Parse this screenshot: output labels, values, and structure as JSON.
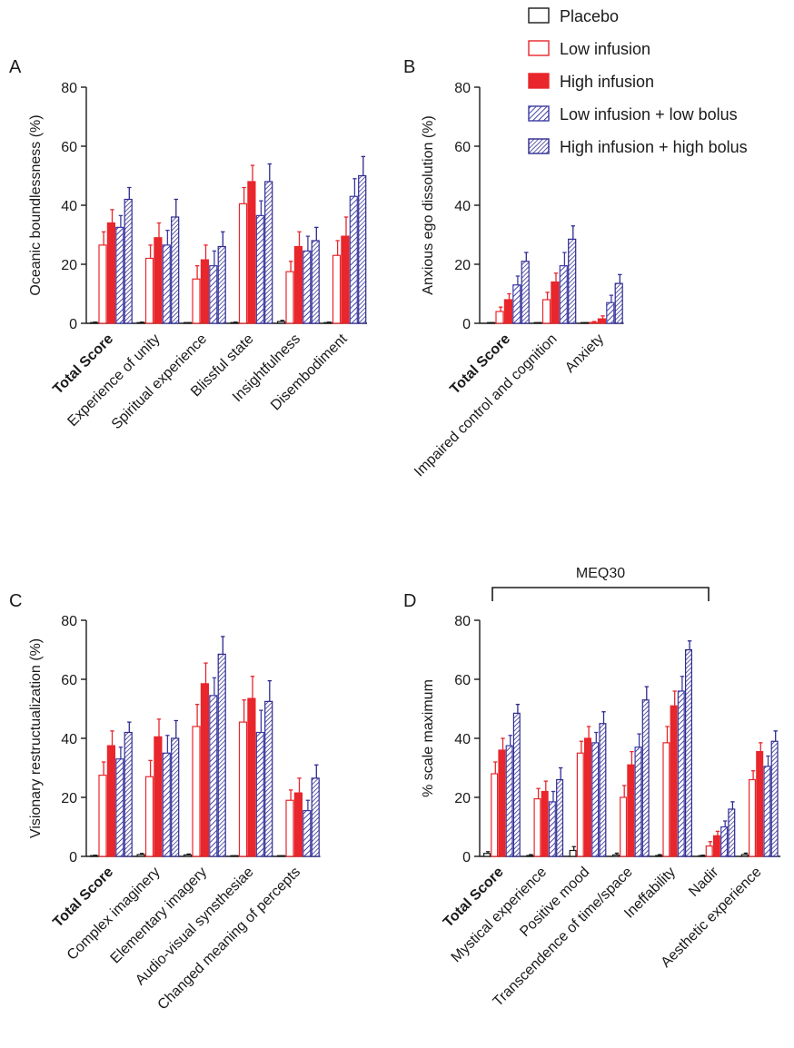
{
  "colors": {
    "placebo": "#1a1a1a",
    "low_infusion": "#e8262b",
    "high_infusion": "#e8262b",
    "low_infusion_low_bolus": "#3b3aa3",
    "high_infusion_high_bolus": "#2e2a8f"
  },
  "legend": [
    {
      "key": "placebo",
      "label": "Placebo",
      "style": "open"
    },
    {
      "key": "low_infusion",
      "label": "Low infusion",
      "style": "open"
    },
    {
      "key": "high_infusion",
      "label": "High infusion",
      "style": "solid"
    },
    {
      "key": "low_infusion_low_bolus",
      "label": "Low infusion + low bolus",
      "style": "hatch-light"
    },
    {
      "key": "high_infusion_high_bolus",
      "label": "High infusion + high bolus",
      "style": "hatch-dense"
    }
  ],
  "chart_data": [
    {
      "type": "bar",
      "panel": "A",
      "ylabel": "Oceanic boundlessness  (%)",
      "ylim": [
        0,
        80
      ],
      "yticks": [
        0,
        20,
        40,
        60,
        80
      ],
      "categories": [
        "Total Score",
        "Experience of unity",
        "Spiritual experience",
        "Blissful state",
        "Insightfulness",
        "Disembodiment"
      ],
      "bold_categories": [
        "Total Score"
      ],
      "series": [
        {
          "name": "Placebo",
          "key": "placebo",
          "values": [
            0.2,
            0.2,
            0.1,
            0.2,
            0.6,
            0.2
          ],
          "errors": [
            0.2,
            0.2,
            0.1,
            0.2,
            0.4,
            0.2
          ]
        },
        {
          "name": "Low infusion",
          "key": "low_infusion",
          "values": [
            26.5,
            22,
            15,
            40.5,
            17.5,
            23
          ],
          "errors": [
            4.5,
            4.5,
            4.5,
            5.5,
            3.5,
            5
          ]
        },
        {
          "name": "High infusion",
          "key": "high_infusion",
          "values": [
            34,
            29,
            21.5,
            48,
            26,
            29.5
          ],
          "errors": [
            4.5,
            5,
            5,
            5.5,
            5,
            6.5
          ]
        },
        {
          "name": "Low infusion + low bolus",
          "key": "low_infusion_low_bolus",
          "values": [
            32.5,
            26.5,
            19.5,
            36.5,
            24.5,
            43
          ],
          "errors": [
            4,
            5,
            5,
            5,
            5,
            6
          ]
        },
        {
          "name": "High infusion + high bolus",
          "key": "high_infusion_high_bolus",
          "values": [
            42,
            36,
            26,
            48,
            28,
            50
          ],
          "errors": [
            4,
            6,
            5,
            6,
            4.5,
            6.5
          ]
        }
      ]
    },
    {
      "type": "bar",
      "panel": "B",
      "ylabel": "Anxious ego dissolution (%)",
      "ylim": [
        0,
        80
      ],
      "yticks": [
        0,
        20,
        40,
        60,
        80
      ],
      "categories": [
        "Total Score",
        "Impaired control and cognition",
        "Anxiety"
      ],
      "bold_categories": [
        "Total Score"
      ],
      "series": [
        {
          "name": "Placebo",
          "key": "placebo",
          "values": [
            0.1,
            0.1,
            0.1
          ],
          "errors": [
            0.1,
            0.1,
            0.1
          ]
        },
        {
          "name": "Low infusion",
          "key": "low_infusion",
          "values": [
            4,
            8,
            0.3
          ],
          "errors": [
            1.5,
            2.5,
            0.3
          ]
        },
        {
          "name": "High infusion",
          "key": "high_infusion",
          "values": [
            8,
            14,
            1.5
          ],
          "errors": [
            2,
            3,
            1
          ]
        },
        {
          "name": "Low infusion + low bolus",
          "key": "low_infusion_low_bolus",
          "values": [
            13,
            19.5,
            7
          ],
          "errors": [
            3,
            4.5,
            2.5
          ]
        },
        {
          "name": "High infusion + high bolus",
          "key": "high_infusion_high_bolus",
          "values": [
            21,
            28.5,
            13.5
          ],
          "errors": [
            3,
            4.5,
            3
          ]
        }
      ]
    },
    {
      "type": "bar",
      "panel": "C",
      "ylabel": "Visionary restructualization (%)",
      "ylim": [
        0,
        80
      ],
      "yticks": [
        0,
        20,
        40,
        60,
        80
      ],
      "categories": [
        "Total Score",
        "Complex imaginery",
        "Elementary imagery",
        "Audio-visual synsthesiae",
        "Changed meaning of percepts"
      ],
      "bold_categories": [
        "Total Score"
      ],
      "series": [
        {
          "name": "Placebo",
          "key": "placebo",
          "values": [
            0.2,
            0.6,
            0.5,
            0.1,
            0.1
          ],
          "errors": [
            0.2,
            0.4,
            0.3,
            0.1,
            0.1
          ]
        },
        {
          "name": "Low infusion",
          "key": "low_infusion",
          "values": [
            27.5,
            27,
            44,
            45.5,
            19
          ],
          "errors": [
            4.5,
            5.5,
            7.5,
            7.5,
            3.5
          ]
        },
        {
          "name": "High infusion",
          "key": "high_infusion",
          "values": [
            37.5,
            40.5,
            58.5,
            53.5,
            21.5
          ],
          "errors": [
            5,
            6,
            7,
            7.5,
            5
          ]
        },
        {
          "name": "Low infusion + low bolus",
          "key": "low_infusion_low_bolus",
          "values": [
            33,
            35,
            54.5,
            42,
            15.5
          ],
          "errors": [
            4,
            6,
            6,
            7.5,
            3.5
          ]
        },
        {
          "name": "High infusion + high bolus",
          "key": "high_infusion_high_bolus",
          "values": [
            42,
            40,
            68.5,
            52.5,
            26.5
          ],
          "errors": [
            3.5,
            6,
            6,
            7,
            4.5
          ]
        }
      ]
    },
    {
      "type": "bar",
      "panel": "D",
      "ylabel": "% scale maximum",
      "ylim": [
        0,
        80
      ],
      "yticks": [
        0,
        20,
        40,
        60,
        80
      ],
      "bracket_label": "MEQ30",
      "categories": [
        "Total Score",
        "Mystical experience",
        "Positive mood",
        "Transcendence of time/space",
        "Ineffability",
        "Nadir",
        "Aesthetic experience"
      ],
      "bold_categories": [
        "Total Score"
      ],
      "series": [
        {
          "name": "Placebo",
          "key": "placebo",
          "values": [
            1,
            0.3,
            2,
            0.5,
            0.3,
            0.2,
            0.6
          ],
          "errors": [
            0.6,
            0.3,
            1.3,
            0.6,
            0.3,
            0.2,
            0.5
          ]
        },
        {
          "name": "Low infusion",
          "key": "low_infusion",
          "values": [
            28,
            19.5,
            35,
            20,
            38.5,
            3.5,
            26
          ],
          "errors": [
            4,
            3.5,
            4,
            4,
            5.5,
            1.5,
            3
          ]
        },
        {
          "name": "High infusion",
          "key": "high_infusion",
          "values": [
            36,
            22,
            40,
            31,
            51,
            7,
            35.5
          ],
          "errors": [
            4,
            3.5,
            4,
            4.5,
            5,
            1.5,
            3
          ]
        },
        {
          "name": "Low infusion + low bolus",
          "key": "low_infusion_low_bolus",
          "values": [
            37.5,
            18.5,
            38.5,
            37,
            56,
            10,
            30.5
          ],
          "errors": [
            3.5,
            3.5,
            3.5,
            4.5,
            5,
            2,
            3.5
          ]
        },
        {
          "name": "High infusion + high bolus",
          "key": "high_infusion_high_bolus",
          "values": [
            48.5,
            26,
            45,
            53,
            70,
            16,
            39
          ],
          "errors": [
            3,
            4,
            4,
            4.5,
            3,
            2.5,
            3.5
          ]
        }
      ]
    }
  ]
}
